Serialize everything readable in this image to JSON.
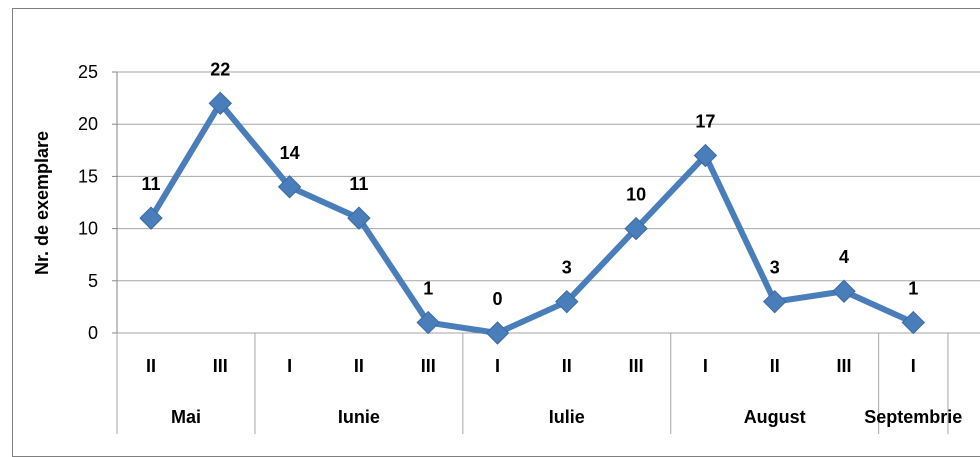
{
  "chart_data": {
    "type": "line",
    "title": "",
    "ylabel": "Nr. de exemplare",
    "xlabel": "",
    "ylim": [
      0,
      25
    ],
    "yticks": [
      0,
      5,
      10,
      15,
      20,
      25
    ],
    "grid": true,
    "legend": "none",
    "line_color": "#4a7ebb",
    "categories": [
      "II",
      "III",
      "I",
      "II",
      "III",
      "I",
      "II",
      "III",
      "I",
      "II",
      "III",
      "I"
    ],
    "groups": [
      {
        "label": "Mai",
        "count": 2
      },
      {
        "label": "Iunie",
        "count": 3
      },
      {
        "label": "Iulie",
        "count": 3
      },
      {
        "label": "August",
        "count": 3
      },
      {
        "label": "Septembrie",
        "count": 1
      }
    ],
    "series": [
      {
        "values": [
          11,
          22,
          14,
          11,
          1,
          0,
          3,
          10,
          17,
          3,
          4,
          1
        ]
      }
    ],
    "data_labels": [
      "11",
      "22",
      "14",
      "11",
      "1",
      "0",
      "3",
      "10",
      "17",
      "3",
      "4",
      "1"
    ]
  }
}
